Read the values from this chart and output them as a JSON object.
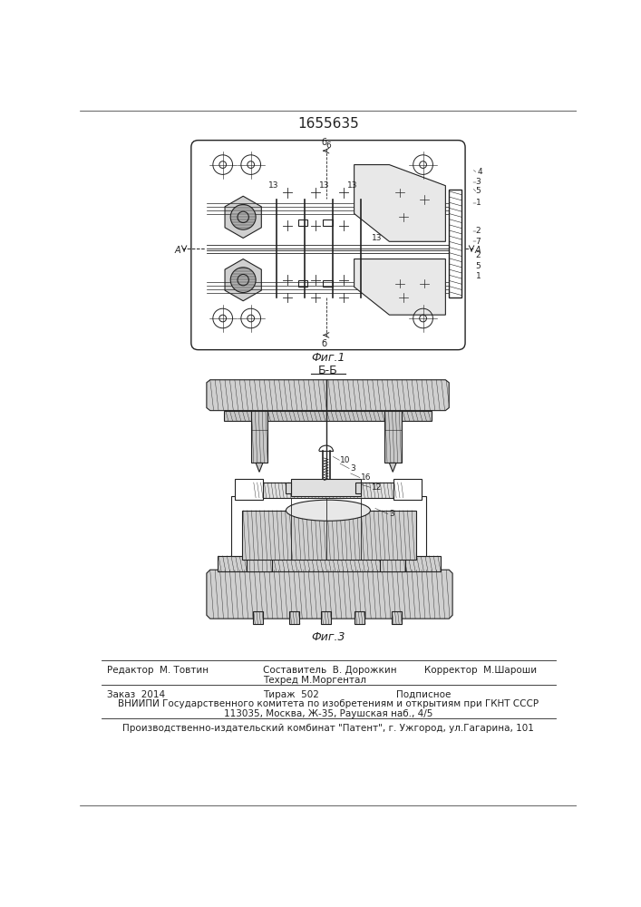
{
  "patent_number": "1655635",
  "fig1_label": "Фиг.1",
  "fig3_label": "Фиг.3",
  "fig_bb_label": "Б-Б",
  "footer_line1_col1": "Редактор  М. Товтин",
  "footer_line1_col2": "Составитель  В. Дорожкин",
  "footer_line1_col3": "Корректор  М.Шароши",
  "footer_line2_col1": "Техред М.Моргентал",
  "footer_line3_col1": "Заказ  2014",
  "footer_line3_col2": "Тираж  502",
  "footer_line3_col3": "Подписное",
  "footer_line4": "ВНИИПИ Государственного комитета по изобретениям и открытиям при ГКНТ СССР",
  "footer_line5": "113035, Москва, Ж-35, Раушская наб., 4/5",
  "footer_line6": "Производственно-издательский комбинат \"Патент\", г. Ужгород, ул.Гагарина, 101",
  "lc": "#222222"
}
